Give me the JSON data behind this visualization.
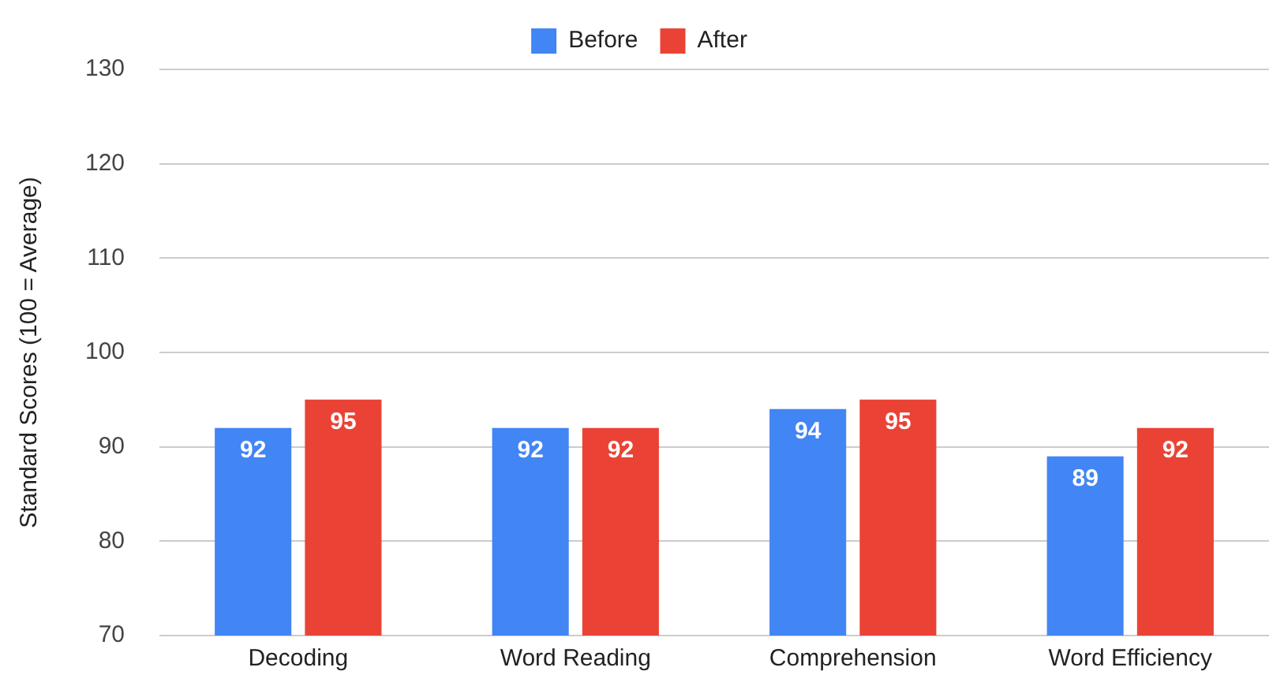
{
  "chart_data": {
    "type": "bar",
    "ylabel": "Standard Scores (100 = Average)",
    "categories": [
      "Decoding",
      "Word Reading",
      "Comprehension",
      "Word Efficiency"
    ],
    "series": [
      {
        "name": "Before",
        "color": "#4285f4",
        "values": [
          92,
          92,
          94,
          89
        ]
      },
      {
        "name": "After",
        "color": "#ea4335",
        "values": [
          95,
          92,
          95,
          92
        ]
      }
    ],
    "ylim": [
      70,
      130
    ],
    "yticks": [
      70,
      80,
      90,
      100,
      110,
      120,
      130
    ],
    "grid": "y",
    "legend": "top",
    "data_labels": true
  }
}
